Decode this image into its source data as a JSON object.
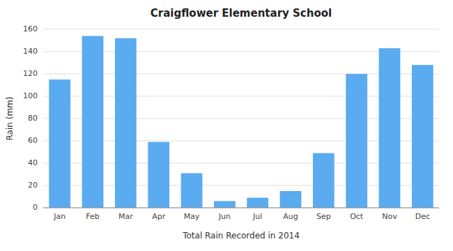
{
  "chart_data": {
    "type": "bar",
    "title": "Craigflower Elementary School",
    "xlabel": "Total Rain Recorded in 2014",
    "ylabel": "Rain (mm)",
    "categories": [
      "Jan",
      "Feb",
      "Mar",
      "Apr",
      "May",
      "Jun",
      "Jul",
      "Aug",
      "Sep",
      "Oct",
      "Nov",
      "Dec"
    ],
    "values": [
      115,
      154,
      152,
      59,
      31,
      6,
      9,
      15,
      49,
      120,
      143,
      128
    ],
    "color": "#5aabf0",
    "ylim": [
      0,
      160
    ],
    "yticks": [
      0,
      20,
      40,
      60,
      80,
      100,
      120,
      140,
      160
    ],
    "grid": true
  }
}
